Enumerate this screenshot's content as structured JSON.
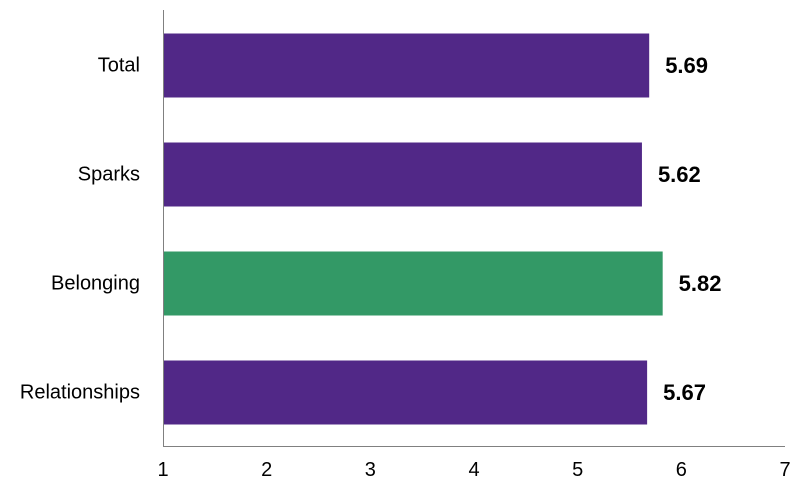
{
  "chart_data": {
    "type": "bar",
    "orientation": "horizontal",
    "categories": [
      "Total",
      "Sparks",
      "Belonging",
      "Relationships"
    ],
    "values": [
      5.69,
      5.62,
      5.82,
      5.67
    ],
    "data_labels": [
      "5.69",
      "5.62",
      "5.82",
      "5.67"
    ],
    "bar_colors": [
      "#512887",
      "#512887",
      "#339966",
      "#512887"
    ],
    "title": "",
    "xlabel": "",
    "ylabel": "",
    "xlim": [
      1,
      7
    ],
    "x_ticks": [
      "1",
      "2",
      "3",
      "4",
      "5",
      "6",
      "7"
    ],
    "grid": false,
    "legend": "none"
  }
}
